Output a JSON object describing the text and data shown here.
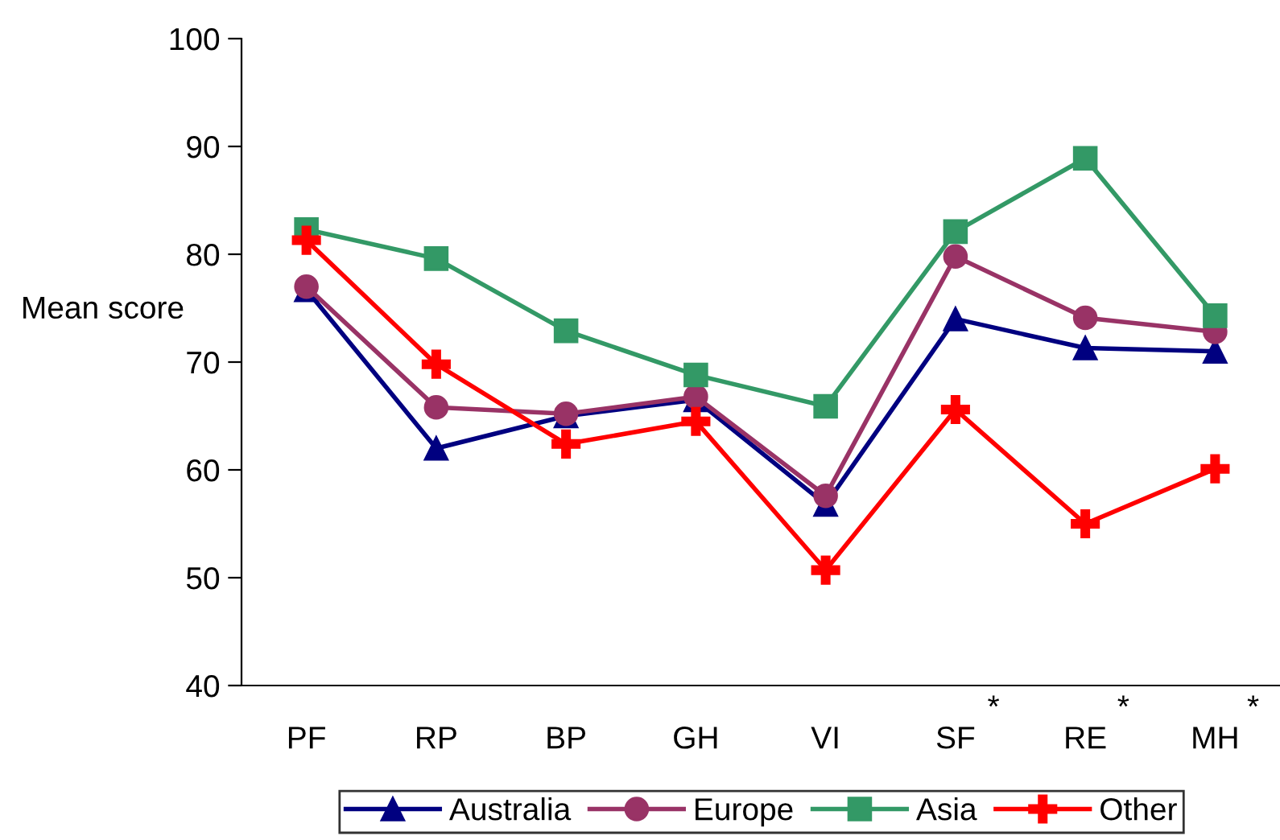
{
  "chart_data": {
    "type": "line",
    "ylabel": "Mean score",
    "categories": [
      "PF",
      "RP",
      "BP",
      "GH",
      "VI",
      "SF",
      "RE",
      "MH"
    ],
    "series": [
      {
        "name": "Australia",
        "color": "#000080",
        "marker": "triangle",
        "values": [
          76.7,
          62,
          65,
          66.5,
          56.8,
          74,
          71.3,
          71
        ]
      },
      {
        "name": "Europe",
        "color": "#993366",
        "marker": "circle",
        "values": [
          77,
          65.8,
          65.2,
          66.8,
          57.6,
          79.8,
          74.1,
          72.8
        ]
      },
      {
        "name": "Asia",
        "color": "#339966",
        "marker": "square",
        "values": [
          82.3,
          79.6,
          72.9,
          68.8,
          65.9,
          82.1,
          88.9,
          74.3
        ]
      },
      {
        "name": "Other",
        "color": "#ff0000",
        "marker": "cross",
        "values": [
          81.3,
          69.8,
          62.4,
          64.5,
          50.7,
          65.6,
          55,
          60.1
        ]
      }
    ],
    "ylim": [
      40,
      100
    ],
    "yticks": [
      40,
      50,
      60,
      70,
      80,
      90,
      100
    ],
    "annotations": [
      "*",
      "*",
      "*"
    ],
    "grid": false,
    "legend": "bottom"
  }
}
